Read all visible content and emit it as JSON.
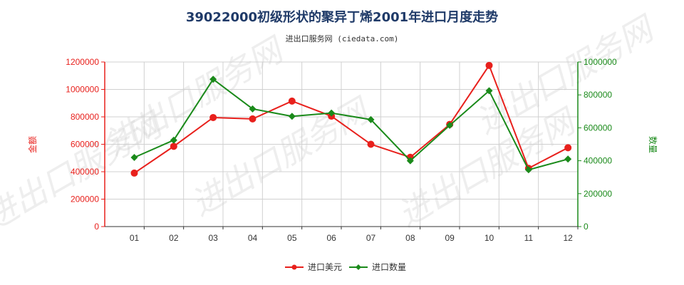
{
  "chart_data": {
    "type": "line",
    "title": "39022000初级形状的聚异丁烯2001年进口月度走势",
    "subtitle": "进出口服务网 (ciedata.com)",
    "categories": [
      "01",
      "02",
      "03",
      "04",
      "05",
      "06",
      "07",
      "08",
      "09",
      "10",
      "11",
      "12"
    ],
    "y_left": {
      "label": "金额",
      "ylim": [
        0,
        1200000
      ],
      "ticks": [
        "0",
        "200000",
        "400000",
        "600000",
        "800000",
        "1000000",
        "1200000"
      ]
    },
    "y_right": {
      "label": "数量",
      "ylim": [
        0,
        1000000
      ],
      "ticks": [
        "0",
        "200000",
        "400000",
        "600000",
        "800000",
        "1000000"
      ]
    },
    "series": [
      {
        "name": "进口美元",
        "axis": "left",
        "color": "#e8201c",
        "marker": "circle",
        "values": [
          390000,
          585000,
          795000,
          785000,
          915000,
          805000,
          600000,
          505000,
          745000,
          1175000,
          425000,
          575000
        ]
      },
      {
        "name": "进口数量",
        "axis": "right",
        "color": "#1a8a1a",
        "marker": "diamond",
        "values": [
          420000,
          525000,
          895000,
          715000,
          670000,
          690000,
          650000,
          400000,
          615000,
          825000,
          345000,
          410000
        ]
      }
    ],
    "grid": true,
    "legend_position": "bottom-center",
    "watermark": "进出口服务网"
  }
}
